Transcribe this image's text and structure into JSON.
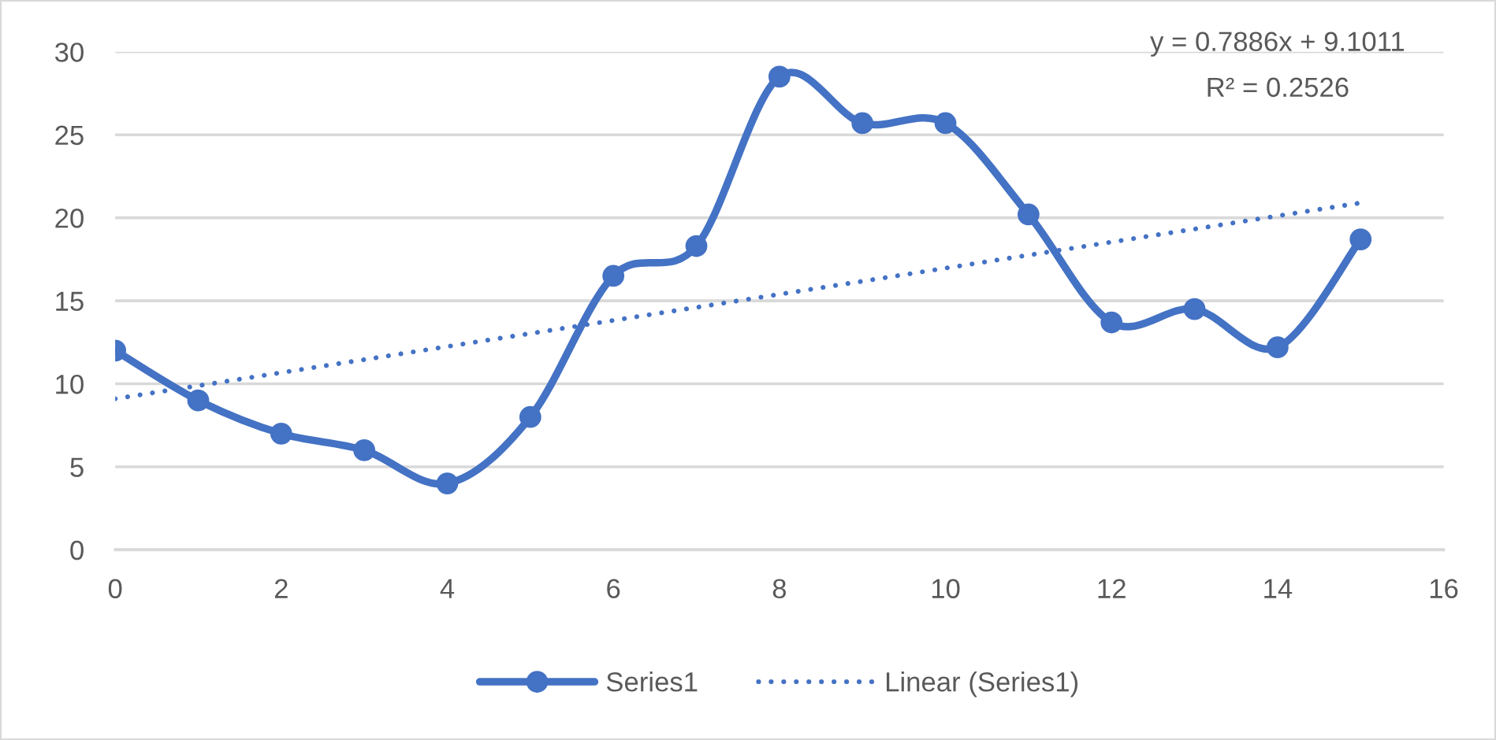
{
  "chart_data": {
    "type": "line",
    "x": [
      0,
      1,
      2,
      3,
      4,
      5,
      6,
      7,
      8,
      9,
      10,
      11,
      12,
      13,
      14,
      15
    ],
    "series": [
      {
        "name": "Series1",
        "color": "#4472c4",
        "marker": "circle",
        "line_style": "solid",
        "values": [
          12,
          9,
          7,
          6,
          4,
          8,
          16.5,
          18.3,
          28.5,
          25.7,
          25.7,
          20.2,
          13.7,
          14.5,
          12.2,
          18.7
        ]
      },
      {
        "name": "Linear (Series1)",
        "color": "#4472c4",
        "marker": "none",
        "line_style": "dotted",
        "x": [
          0,
          15
        ],
        "values": [
          9.1,
          20.9
        ]
      }
    ],
    "annotations": [
      "y = 0.7886x + 9.1011",
      "R² = 0.2526"
    ],
    "xlim": [
      0,
      16
    ],
    "xticks": [
      0,
      2,
      4,
      6,
      8,
      10,
      12,
      14,
      16
    ],
    "ylim": [
      0,
      30
    ],
    "yticks": [
      0,
      5,
      10,
      15,
      20,
      25,
      30
    ],
    "grid": "y",
    "legend": "bottom"
  }
}
